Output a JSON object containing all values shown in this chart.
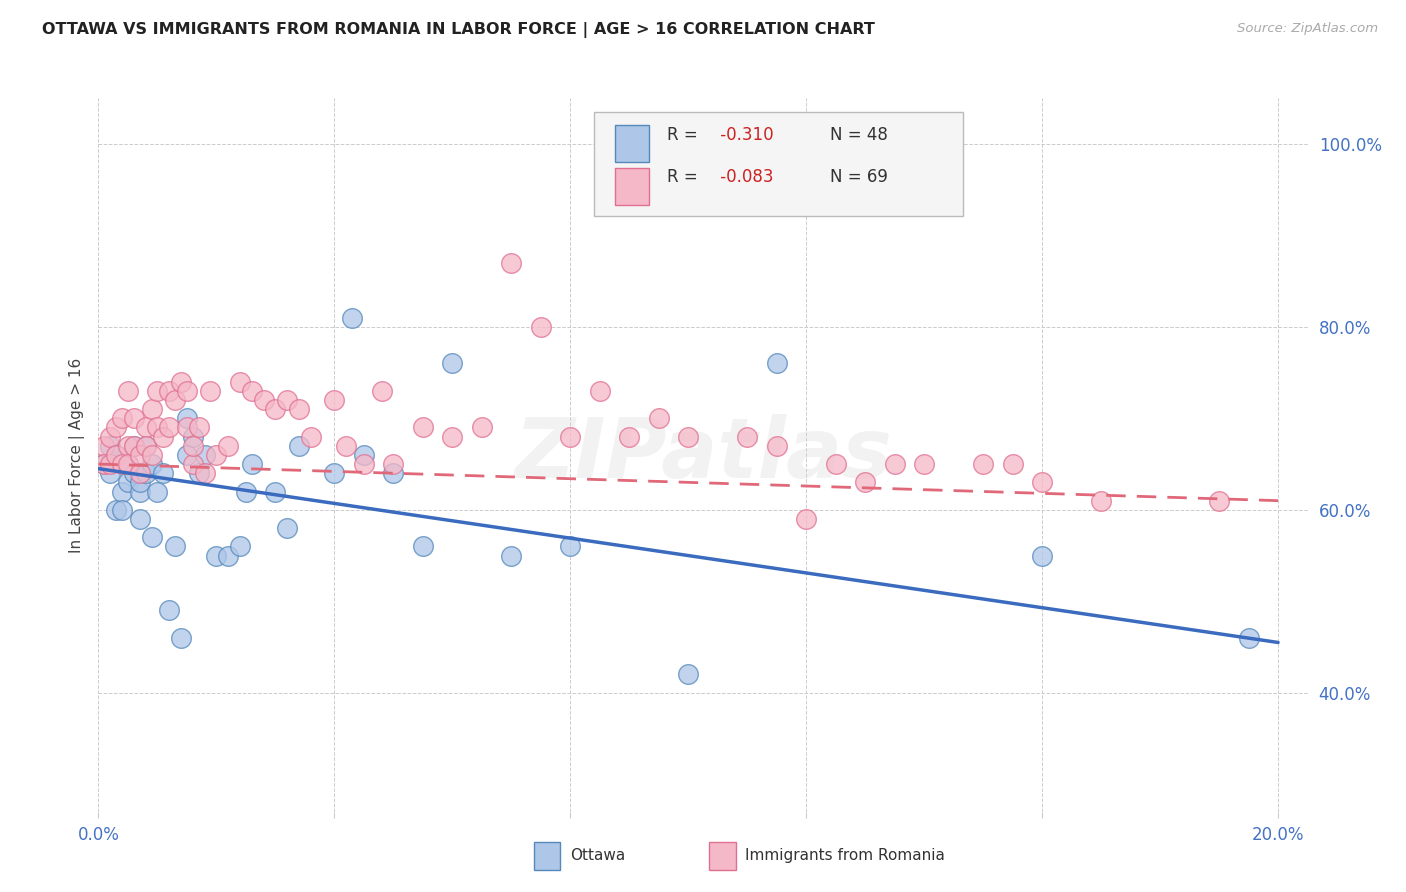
{
  "title": "OTTAWA VS IMMIGRANTS FROM ROMANIA IN LABOR FORCE | AGE > 16 CORRELATION CHART",
  "source": "Source: ZipAtlas.com",
  "ylabel": "In Labor Force | Age > 16",
  "xlim": [
    0.0,
    0.205
  ],
  "ylim": [
    0.27,
    1.05
  ],
  "xticks": [
    0.0,
    0.04,
    0.08,
    0.12,
    0.16,
    0.2
  ],
  "yticks": [
    0.4,
    0.6,
    0.8,
    1.0
  ],
  "xtick_labels": [
    "0.0%",
    "",
    "",
    "",
    "",
    "20.0%"
  ],
  "ytick_labels": [
    "40.0%",
    "60.0%",
    "80.0%",
    "100.0%"
  ],
  "ottawa_fill": "#aec6e8",
  "ottawa_edge": "#5588bb",
  "romania_fill": "#f5b8c8",
  "romania_edge": "#e07090",
  "line_blue": "#3a6bbf",
  "line_pink": "#e06878",
  "r1": "-0.310",
  "n1": "48",
  "r2": "-0.083",
  "n2": "69",
  "blue_line_x0": 0.0,
  "blue_line_y0": 0.645,
  "blue_line_x1": 0.2,
  "blue_line_y1": 0.455,
  "pink_line_x0": 0.0,
  "pink_line_y0": 0.65,
  "pink_line_x1": 0.2,
  "pink_line_y1": 0.61,
  "ottawa_x": [
    0.001,
    0.002,
    0.002,
    0.003,
    0.003,
    0.004,
    0.004,
    0.005,
    0.005,
    0.006,
    0.006,
    0.007,
    0.007,
    0.007,
    0.008,
    0.008,
    0.009,
    0.009,
    0.01,
    0.011,
    0.012,
    0.013,
    0.014,
    0.015,
    0.015,
    0.016,
    0.017,
    0.018,
    0.02,
    0.022,
    0.024,
    0.025,
    0.026,
    0.03,
    0.032,
    0.034,
    0.04,
    0.043,
    0.045,
    0.05,
    0.055,
    0.06,
    0.07,
    0.08,
    0.1,
    0.115,
    0.16,
    0.195
  ],
  "ottawa_y": [
    0.65,
    0.67,
    0.64,
    0.66,
    0.6,
    0.62,
    0.6,
    0.65,
    0.63,
    0.67,
    0.64,
    0.62,
    0.59,
    0.63,
    0.64,
    0.67,
    0.65,
    0.57,
    0.62,
    0.64,
    0.49,
    0.56,
    0.46,
    0.7,
    0.66,
    0.68,
    0.64,
    0.66,
    0.55,
    0.55,
    0.56,
    0.62,
    0.65,
    0.62,
    0.58,
    0.67,
    0.64,
    0.81,
    0.66,
    0.64,
    0.56,
    0.76,
    0.55,
    0.56,
    0.42,
    0.76,
    0.55,
    0.46
  ],
  "romania_x": [
    0.001,
    0.001,
    0.002,
    0.002,
    0.003,
    0.003,
    0.004,
    0.004,
    0.005,
    0.005,
    0.005,
    0.006,
    0.006,
    0.007,
    0.007,
    0.008,
    0.008,
    0.009,
    0.009,
    0.01,
    0.01,
    0.011,
    0.012,
    0.012,
    0.013,
    0.014,
    0.015,
    0.015,
    0.016,
    0.016,
    0.017,
    0.018,
    0.019,
    0.02,
    0.022,
    0.024,
    0.026,
    0.028,
    0.03,
    0.032,
    0.034,
    0.036,
    0.04,
    0.042,
    0.045,
    0.048,
    0.05,
    0.055,
    0.06,
    0.065,
    0.07,
    0.075,
    0.08,
    0.085,
    0.09,
    0.095,
    0.1,
    0.11,
    0.115,
    0.12,
    0.125,
    0.13,
    0.135,
    0.14,
    0.15,
    0.155,
    0.16,
    0.17,
    0.19
  ],
  "romania_y": [
    0.67,
    0.65,
    0.68,
    0.65,
    0.69,
    0.66,
    0.7,
    0.65,
    0.73,
    0.67,
    0.65,
    0.7,
    0.67,
    0.66,
    0.64,
    0.69,
    0.67,
    0.71,
    0.66,
    0.73,
    0.69,
    0.68,
    0.73,
    0.69,
    0.72,
    0.74,
    0.69,
    0.73,
    0.65,
    0.67,
    0.69,
    0.64,
    0.73,
    0.66,
    0.67,
    0.74,
    0.73,
    0.72,
    0.71,
    0.72,
    0.71,
    0.68,
    0.72,
    0.67,
    0.65,
    0.73,
    0.65,
    0.69,
    0.68,
    0.69,
    0.87,
    0.8,
    0.68,
    0.73,
    0.68,
    0.7,
    0.68,
    0.68,
    0.67,
    0.59,
    0.65,
    0.63,
    0.65,
    0.65,
    0.65,
    0.65,
    0.63,
    0.61,
    0.61
  ]
}
